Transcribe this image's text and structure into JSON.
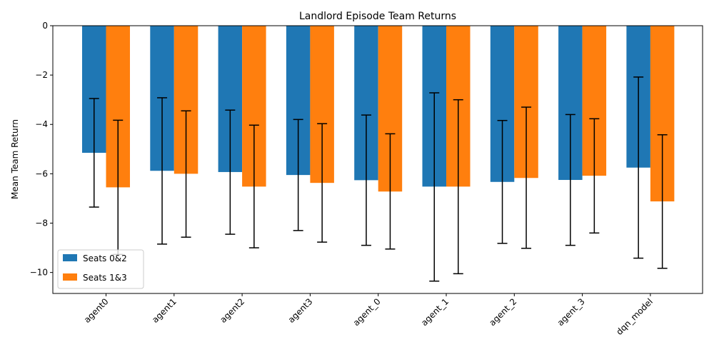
{
  "chart_data": {
    "type": "bar",
    "title": "Landlord Episode Team Returns",
    "xlabel": "",
    "ylabel": "Mean Team Return",
    "categories": [
      "agent0",
      "agent1",
      "agent2",
      "agent3",
      "agent_0",
      "agent_1",
      "agent_2",
      "agent_3",
      "dqn_model"
    ],
    "series": [
      {
        "name": "Seats 0&2",
        "color": "#1f77b4",
        "values": [
          -5.15,
          -5.88,
          -5.93,
          -6.05,
          -6.26,
          -6.52,
          -6.33,
          -6.25,
          -5.75
        ],
        "error_low": [
          -7.35,
          -8.85,
          -8.45,
          -8.3,
          -8.9,
          -10.35,
          -8.82,
          -8.9,
          -9.42
        ],
        "error_high": [
          -2.95,
          -2.92,
          -3.42,
          -3.8,
          -3.62,
          -2.72,
          -3.84,
          -3.6,
          -2.08
        ]
      },
      {
        "name": "Seats 1&3",
        "color": "#ff7f0e",
        "values": [
          -6.55,
          -6.0,
          -6.52,
          -6.37,
          -6.72,
          -6.52,
          -6.17,
          -6.08,
          -7.12
        ],
        "error_low": [
          -9.27,
          -8.57,
          -9.0,
          -8.77,
          -9.05,
          -10.05,
          -9.02,
          -8.4,
          -9.83
        ],
        "error_high": [
          -3.83,
          -3.45,
          -4.03,
          -3.97,
          -4.38,
          -3.0,
          -3.3,
          -3.77,
          -4.42
        ]
      }
    ],
    "ylim": [
      -10.85,
      0
    ],
    "yticks": [
      0,
      -2,
      -4,
      -6,
      -8,
      -10
    ],
    "grid": false,
    "legend_position": "lower-left"
  }
}
